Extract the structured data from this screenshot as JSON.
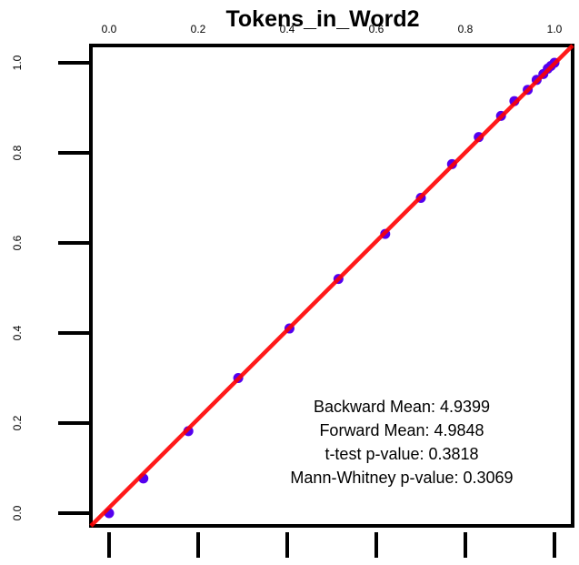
{
  "chart_data": {
    "type": "scatter",
    "title": "Tokens_in_Word2",
    "xlabel": "",
    "ylabel": "",
    "xlim": [
      0.0,
      1.0
    ],
    "ylim": [
      0.0,
      1.0
    ],
    "x_tick_labels": [
      "0.0",
      "0.2",
      "0.4",
      "0.6",
      "0.8",
      "1.0"
    ],
    "y_tick_labels": [
      "0.0",
      "0.2",
      "0.4",
      "0.6",
      "0.8",
      "1.0"
    ],
    "grid": false,
    "point_color": "#5500ee",
    "line_color": "#ff0000",
    "reference_line": {
      "type": "diagonal",
      "from": [
        0,
        0
      ],
      "to": [
        1,
        1
      ]
    },
    "points": [
      {
        "x": 0.0,
        "y": 0.0
      },
      {
        "x": 0.077,
        "y": 0.077
      },
      {
        "x": 0.178,
        "y": 0.182
      },
      {
        "x": 0.29,
        "y": 0.3
      },
      {
        "x": 0.405,
        "y": 0.41
      },
      {
        "x": 0.515,
        "y": 0.52
      },
      {
        "x": 0.62,
        "y": 0.62
      },
      {
        "x": 0.7,
        "y": 0.7
      },
      {
        "x": 0.77,
        "y": 0.775
      },
      {
        "x": 0.83,
        "y": 0.835
      },
      {
        "x": 0.88,
        "y": 0.882
      },
      {
        "x": 0.91,
        "y": 0.915
      },
      {
        "x": 0.94,
        "y": 0.94
      },
      {
        "x": 0.96,
        "y": 0.962
      },
      {
        "x": 0.975,
        "y": 0.975
      },
      {
        "x": 0.985,
        "y": 0.987
      },
      {
        "x": 0.992,
        "y": 0.993
      },
      {
        "x": 1.0,
        "y": 1.0
      }
    ],
    "annotations": [
      "Backward Mean: 4.9399",
      "Forward Mean: 4.9848",
      "t-test p-value: 0.3818",
      "Mann-Whitney p-value: 0.3069"
    ]
  }
}
